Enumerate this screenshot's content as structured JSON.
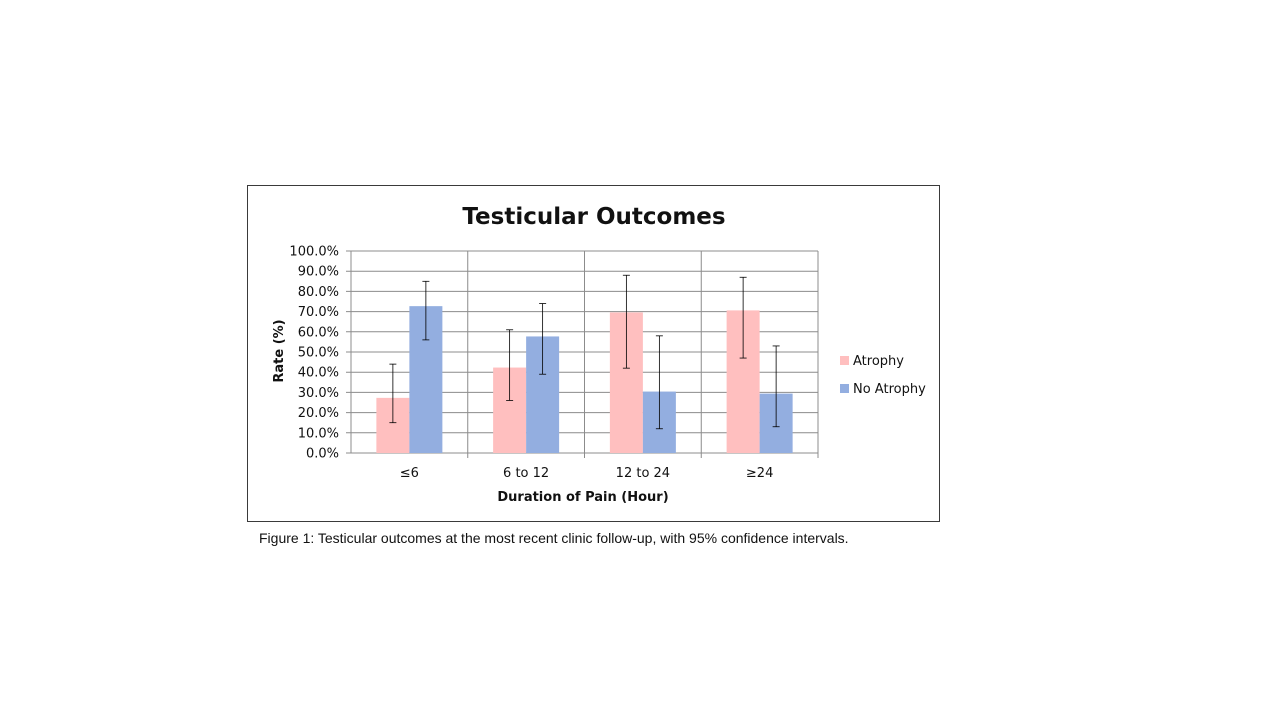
{
  "caption": "Figure 1: Testicular outcomes at the most recent clinic follow-up, with 95% confidence intervals.",
  "colors": {
    "atrophy": "#ffbfbf",
    "no_atrophy": "#93aee0",
    "grid": "#8c8c8c",
    "error_bar": "#000000"
  },
  "chart_data": {
    "type": "bar",
    "title": "Testicular Outcomes",
    "xlabel": "Duration of Pain (Hour)",
    "ylabel": "Rate (%)",
    "ylim": [
      0,
      100
    ],
    "yticks": [
      "0.0%",
      "10.0%",
      "20.0%",
      "30.0%",
      "40.0%",
      "50.0%",
      "60.0%",
      "70.0%",
      "80.0%",
      "90.0%",
      "100.0%"
    ],
    "grid": true,
    "legend_position": "right",
    "categories": [
      "≤6",
      "6 to 12",
      "12 to 24",
      "≥24"
    ],
    "series": [
      {
        "name": "Atrophy",
        "color": "#ffbfbf",
        "values": [
          27.3,
          42.3,
          69.6,
          70.6
        ],
        "ci_low": [
          15,
          26,
          42,
          47
        ],
        "ci_high": [
          44,
          61,
          88,
          87
        ]
      },
      {
        "name": "No Atrophy",
        "color": "#93aee0",
        "values": [
          72.7,
          57.7,
          30.4,
          29.4
        ],
        "ci_low": [
          56,
          39,
          12,
          13
        ],
        "ci_high": [
          85,
          74,
          58,
          53
        ]
      }
    ]
  }
}
